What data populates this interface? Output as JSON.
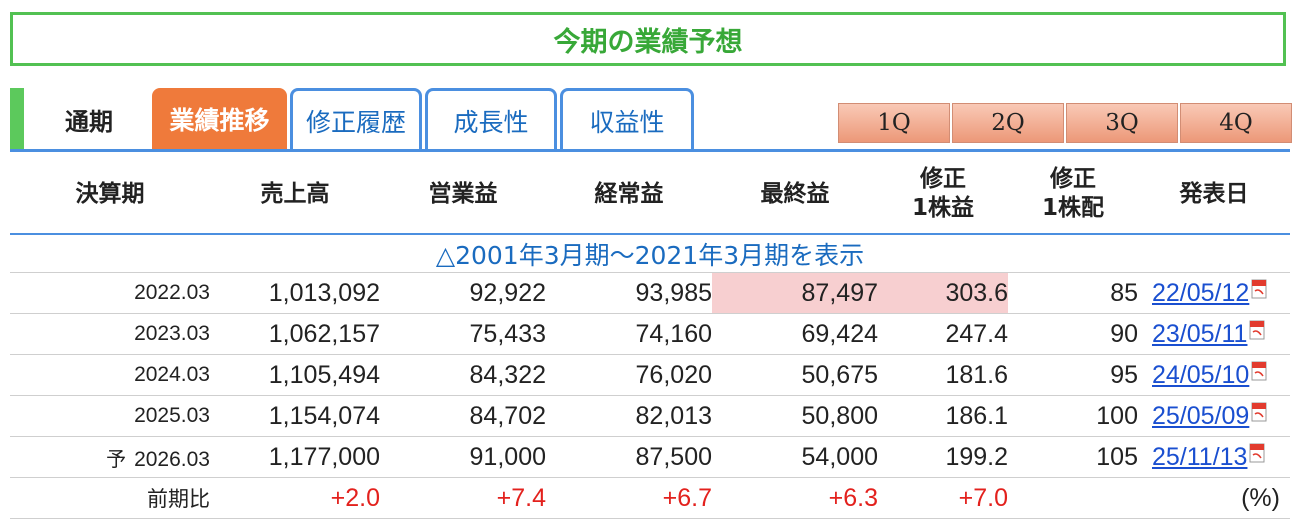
{
  "title": "今期の業績予想",
  "tabs": {
    "period_label": "通期",
    "items": [
      "業績推移",
      "修正履歴",
      "成長性",
      "収益性"
    ]
  },
  "quarters": [
    "1Q",
    "2Q",
    "3Q",
    "4Q"
  ],
  "table": {
    "headers": {
      "period": "決算期",
      "sales": "売上高",
      "operating": "営業益",
      "ordinary": "経常益",
      "net": "最終益",
      "eps_line1": "修正",
      "eps_line2": "1株益",
      "div_line1": "修正",
      "div_line2": "1株配",
      "date": "発表日"
    },
    "toggle": "△2001年3月期〜2021年3月期を表示",
    "rows": [
      {
        "prefix": "",
        "period": "2022.03",
        "sales": "1,013,092",
        "operating": "92,922",
        "ordinary": "93,985",
        "net": "87,497",
        "eps": "303.6",
        "div": "85",
        "date": "22/05/12"
      },
      {
        "prefix": "",
        "period": "2023.03",
        "sales": "1,062,157",
        "operating": "75,433",
        "ordinary": "74,160",
        "net": "69,424",
        "eps": "247.4",
        "div": "90",
        "date": "23/05/11"
      },
      {
        "prefix": "",
        "period": "2024.03",
        "sales": "1,105,494",
        "operating": "84,322",
        "ordinary": "76,020",
        "net": "50,675",
        "eps": "181.6",
        "div": "95",
        "date": "24/05/10"
      },
      {
        "prefix": "",
        "period": "2025.03",
        "sales": "1,154,074",
        "operating": "84,702",
        "ordinary": "82,013",
        "net": "50,800",
        "eps": "186.1",
        "div": "100",
        "date": "25/05/09"
      },
      {
        "prefix": "予",
        "period": "2026.03",
        "sales": "1,177,000",
        "operating": "91,000",
        "ordinary": "87,500",
        "net": "54,000",
        "eps": "199.2",
        "div": "105",
        "date": "25/11/13"
      }
    ],
    "comparison": {
      "label": "前期比",
      "sales": "+2.0",
      "operating": "+7.4",
      "ordinary": "+6.7",
      "net": "+6.3",
      "eps": "+7.0",
      "unit": "(%)"
    }
  },
  "colors": {
    "title_green": "#38a838",
    "active_tab": "#ef7a3b",
    "tab_blue": "#4b8fe0",
    "highlight": "#f7cfd0",
    "positive_red": "#e3211d"
  }
}
